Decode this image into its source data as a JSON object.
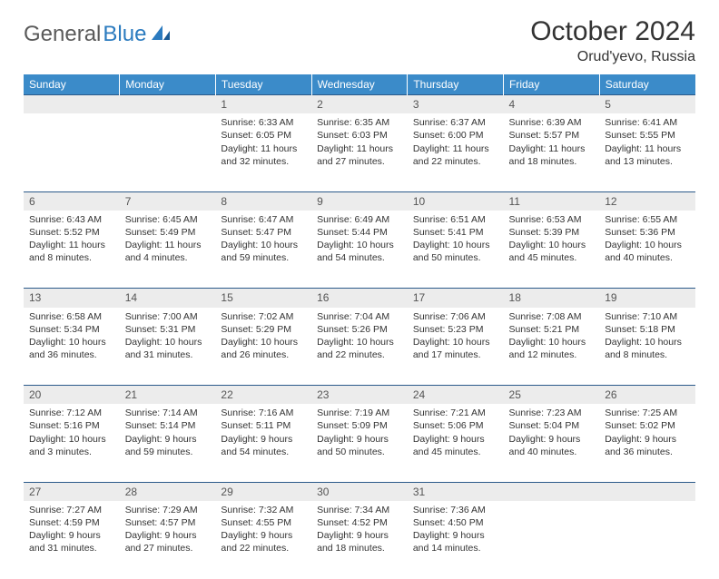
{
  "logo": {
    "text1": "General",
    "text2": "Blue"
  },
  "header": {
    "month_title": "October 2024",
    "location": "Orud'yevo, Russia"
  },
  "colors": {
    "header_bg": "#3b8bc9",
    "header_text": "#ffffff",
    "daynum_bg": "#ececec",
    "daynum_border": "#2b5a8a",
    "body_text": "#333333",
    "logo_blue": "#2b7bbf"
  },
  "day_headers": [
    "Sunday",
    "Monday",
    "Tuesday",
    "Wednesday",
    "Thursday",
    "Friday",
    "Saturday"
  ],
  "weeks": [
    {
      "nums": [
        "",
        "",
        "1",
        "2",
        "3",
        "4",
        "5"
      ],
      "cells": [
        {
          "lines": []
        },
        {
          "lines": []
        },
        {
          "lines": [
            "Sunrise: 6:33 AM",
            "Sunset: 6:05 PM",
            "Daylight: 11 hours",
            "and 32 minutes."
          ]
        },
        {
          "lines": [
            "Sunrise: 6:35 AM",
            "Sunset: 6:03 PM",
            "Daylight: 11 hours",
            "and 27 minutes."
          ]
        },
        {
          "lines": [
            "Sunrise: 6:37 AM",
            "Sunset: 6:00 PM",
            "Daylight: 11 hours",
            "and 22 minutes."
          ]
        },
        {
          "lines": [
            "Sunrise: 6:39 AM",
            "Sunset: 5:57 PM",
            "Daylight: 11 hours",
            "and 18 minutes."
          ]
        },
        {
          "lines": [
            "Sunrise: 6:41 AM",
            "Sunset: 5:55 PM",
            "Daylight: 11 hours",
            "and 13 minutes."
          ]
        }
      ]
    },
    {
      "nums": [
        "6",
        "7",
        "8",
        "9",
        "10",
        "11",
        "12"
      ],
      "cells": [
        {
          "lines": [
            "Sunrise: 6:43 AM",
            "Sunset: 5:52 PM",
            "Daylight: 11 hours",
            "and 8 minutes."
          ]
        },
        {
          "lines": [
            "Sunrise: 6:45 AM",
            "Sunset: 5:49 PM",
            "Daylight: 11 hours",
            "and 4 minutes."
          ]
        },
        {
          "lines": [
            "Sunrise: 6:47 AM",
            "Sunset: 5:47 PM",
            "Daylight: 10 hours",
            "and 59 minutes."
          ]
        },
        {
          "lines": [
            "Sunrise: 6:49 AM",
            "Sunset: 5:44 PM",
            "Daylight: 10 hours",
            "and 54 minutes."
          ]
        },
        {
          "lines": [
            "Sunrise: 6:51 AM",
            "Sunset: 5:41 PM",
            "Daylight: 10 hours",
            "and 50 minutes."
          ]
        },
        {
          "lines": [
            "Sunrise: 6:53 AM",
            "Sunset: 5:39 PM",
            "Daylight: 10 hours",
            "and 45 minutes."
          ]
        },
        {
          "lines": [
            "Sunrise: 6:55 AM",
            "Sunset: 5:36 PM",
            "Daylight: 10 hours",
            "and 40 minutes."
          ]
        }
      ]
    },
    {
      "nums": [
        "13",
        "14",
        "15",
        "16",
        "17",
        "18",
        "19"
      ],
      "cells": [
        {
          "lines": [
            "Sunrise: 6:58 AM",
            "Sunset: 5:34 PM",
            "Daylight: 10 hours",
            "and 36 minutes."
          ]
        },
        {
          "lines": [
            "Sunrise: 7:00 AM",
            "Sunset: 5:31 PM",
            "Daylight: 10 hours",
            "and 31 minutes."
          ]
        },
        {
          "lines": [
            "Sunrise: 7:02 AM",
            "Sunset: 5:29 PM",
            "Daylight: 10 hours",
            "and 26 minutes."
          ]
        },
        {
          "lines": [
            "Sunrise: 7:04 AM",
            "Sunset: 5:26 PM",
            "Daylight: 10 hours",
            "and 22 minutes."
          ]
        },
        {
          "lines": [
            "Sunrise: 7:06 AM",
            "Sunset: 5:23 PM",
            "Daylight: 10 hours",
            "and 17 minutes."
          ]
        },
        {
          "lines": [
            "Sunrise: 7:08 AM",
            "Sunset: 5:21 PM",
            "Daylight: 10 hours",
            "and 12 minutes."
          ]
        },
        {
          "lines": [
            "Sunrise: 7:10 AM",
            "Sunset: 5:18 PM",
            "Daylight: 10 hours",
            "and 8 minutes."
          ]
        }
      ]
    },
    {
      "nums": [
        "20",
        "21",
        "22",
        "23",
        "24",
        "25",
        "26"
      ],
      "cells": [
        {
          "lines": [
            "Sunrise: 7:12 AM",
            "Sunset: 5:16 PM",
            "Daylight: 10 hours",
            "and 3 minutes."
          ]
        },
        {
          "lines": [
            "Sunrise: 7:14 AM",
            "Sunset: 5:14 PM",
            "Daylight: 9 hours",
            "and 59 minutes."
          ]
        },
        {
          "lines": [
            "Sunrise: 7:16 AM",
            "Sunset: 5:11 PM",
            "Daylight: 9 hours",
            "and 54 minutes."
          ]
        },
        {
          "lines": [
            "Sunrise: 7:19 AM",
            "Sunset: 5:09 PM",
            "Daylight: 9 hours",
            "and 50 minutes."
          ]
        },
        {
          "lines": [
            "Sunrise: 7:21 AM",
            "Sunset: 5:06 PM",
            "Daylight: 9 hours",
            "and 45 minutes."
          ]
        },
        {
          "lines": [
            "Sunrise: 7:23 AM",
            "Sunset: 5:04 PM",
            "Daylight: 9 hours",
            "and 40 minutes."
          ]
        },
        {
          "lines": [
            "Sunrise: 7:25 AM",
            "Sunset: 5:02 PM",
            "Daylight: 9 hours",
            "and 36 minutes."
          ]
        }
      ]
    },
    {
      "nums": [
        "27",
        "28",
        "29",
        "30",
        "31",
        "",
        ""
      ],
      "cells": [
        {
          "lines": [
            "Sunrise: 7:27 AM",
            "Sunset: 4:59 PM",
            "Daylight: 9 hours",
            "and 31 minutes."
          ]
        },
        {
          "lines": [
            "Sunrise: 7:29 AM",
            "Sunset: 4:57 PM",
            "Daylight: 9 hours",
            "and 27 minutes."
          ]
        },
        {
          "lines": [
            "Sunrise: 7:32 AM",
            "Sunset: 4:55 PM",
            "Daylight: 9 hours",
            "and 22 minutes."
          ]
        },
        {
          "lines": [
            "Sunrise: 7:34 AM",
            "Sunset: 4:52 PM",
            "Daylight: 9 hours",
            "and 18 minutes."
          ]
        },
        {
          "lines": [
            "Sunrise: 7:36 AM",
            "Sunset: 4:50 PM",
            "Daylight: 9 hours",
            "and 14 minutes."
          ]
        },
        {
          "lines": []
        },
        {
          "lines": []
        }
      ]
    }
  ]
}
